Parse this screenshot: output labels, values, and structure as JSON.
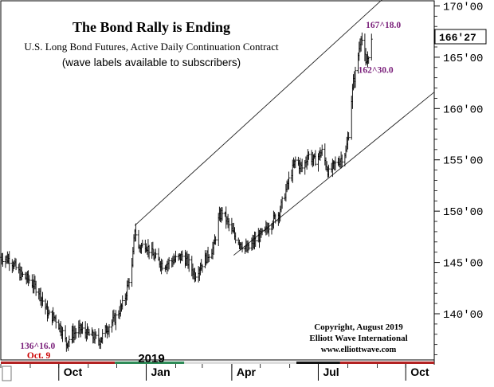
{
  "chart_data": {
    "type": "bar",
    "subtype": "ohlc",
    "title": "The Bond Rally is Ending",
    "subtitle": "U.S. Long Bond Futures, Active Daily Continuation Contract",
    "note": "(wave labels available to subscribers)",
    "ylabel": "",
    "xlabel": "",
    "y_axis_side": "right",
    "ylim": [
      135.5,
      170.5
    ],
    "y_ticks": [
      {
        "value": 170,
        "label": "170'00"
      },
      {
        "value": 165,
        "label": "165'00"
      },
      {
        "value": 160,
        "label": "160'00"
      },
      {
        "value": 155,
        "label": "155'00"
      },
      {
        "value": 150,
        "label": "150'00"
      },
      {
        "value": 145,
        "label": "145'00"
      },
      {
        "value": 140,
        "label": "140'00"
      }
    ],
    "x_ticks": [
      {
        "date": "2018-10-01",
        "label": "Oct"
      },
      {
        "date": "2019-01-01",
        "label": "Jan"
      },
      {
        "date": "2019-04-01",
        "label": "Apr"
      },
      {
        "date": "2019-07-01",
        "label": "Jul"
      },
      {
        "date": "2019-10-01",
        "label": "Oct"
      }
    ],
    "xlim": [
      "2018-08-01",
      "2019-10-31"
    ],
    "year_label": "2019",
    "last_price": {
      "value": 166.84,
      "label": "166'27"
    },
    "annotations": [
      {
        "text": "167^18.0",
        "date": "2019-08-15",
        "value": 167.56,
        "color": "#7a1f7a"
      },
      {
        "text": "162^30.0",
        "date": "2019-08-07",
        "value": 162.94,
        "color": "#7a1f7a"
      },
      {
        "text": "136^16.0",
        "date": "2018-10-09",
        "value": 136.5,
        "color": "#7a1f7a"
      },
      {
        "text": "Oct. 9",
        "date": "2018-10-09",
        "value": 136.5,
        "color": "#cc0000"
      }
    ],
    "copyright": [
      "Copyright, August 2019",
      "Elliott Wave International",
      "www.elliottwave.com"
    ],
    "channel_lines": [
      {
        "name": "upper",
        "from": {
          "date": "2018-12-20",
          "value": 148.6
        },
        "to": {
          "date": "2019-09-06",
          "value": 170.6
        }
      },
      {
        "name": "lower",
        "from": {
          "date": "2019-04-03",
          "value": 145.7
        },
        "to": {
          "date": "2019-10-31",
          "value": 161.6
        }
      }
    ],
    "color_bar": [
      {
        "from": "2018-08-01",
        "to": "2018-11-29",
        "color": "#b22222"
      },
      {
        "from": "2018-11-29",
        "to": "2019-02-10",
        "color": "#2e8b57"
      },
      {
        "from": "2019-02-10",
        "to": "2019-06-08",
        "color": "#dddddd"
      },
      {
        "from": "2019-06-08",
        "to": "2019-07-24",
        "color": "#111111"
      },
      {
        "from": "2019-07-24",
        "to": "2019-10-31",
        "color": "#b22222"
      }
    ],
    "series": [
      {
        "values": [
          {
            "date": "2018-08-01",
            "close": 145.5
          },
          {
            "date": "2018-08-11",
            "close": 145.3
          },
          {
            "date": "2018-08-21",
            "close": 143.9
          },
          {
            "date": "2018-08-31",
            "close": 143.3
          },
          {
            "date": "2018-09-10",
            "close": 142.2
          },
          {
            "date": "2018-09-20",
            "close": 139.9
          },
          {
            "date": "2018-09-27",
            "close": 139.6
          },
          {
            "date": "2018-10-04",
            "close": 138.4
          },
          {
            "date": "2018-10-09",
            "close": 137.1
          },
          {
            "date": "2018-10-15",
            "close": 138.0
          },
          {
            "date": "2018-10-24",
            "close": 138.5
          },
          {
            "date": "2018-11-03",
            "close": 137.9
          },
          {
            "date": "2018-11-13",
            "close": 137.4
          },
          {
            "date": "2018-11-20",
            "close": 138.5
          },
          {
            "date": "2018-11-29",
            "close": 139.5
          },
          {
            "date": "2018-12-09",
            "close": 141.2
          },
          {
            "date": "2018-12-13",
            "close": 143.0
          },
          {
            "date": "2018-12-17",
            "close": 144.5
          },
          {
            "date": "2018-12-20",
            "close": 148.3
          },
          {
            "date": "2018-12-24",
            "close": 146.4
          },
          {
            "date": "2018-12-31",
            "close": 146.8
          },
          {
            "date": "2019-01-09",
            "close": 145.6
          },
          {
            "date": "2019-01-19",
            "close": 144.7
          },
          {
            "date": "2019-01-29",
            "close": 145.2
          },
          {
            "date": "2019-02-08",
            "close": 145.6
          },
          {
            "date": "2019-02-15",
            "close": 144.9
          },
          {
            "date": "2019-02-21",
            "close": 143.8
          },
          {
            "date": "2019-03-03",
            "close": 145.2
          },
          {
            "date": "2019-03-13",
            "close": 146.5
          },
          {
            "date": "2019-03-18",
            "close": 149.1
          },
          {
            "date": "2019-03-22",
            "close": 150.0
          },
          {
            "date": "2019-03-28",
            "close": 148.8
          },
          {
            "date": "2019-04-04",
            "close": 147.6
          },
          {
            "date": "2019-04-11",
            "close": 146.8
          },
          {
            "date": "2019-04-17",
            "close": 146.2
          },
          {
            "date": "2019-04-26",
            "close": 147.2
          },
          {
            "date": "2019-05-06",
            "close": 148.0
          },
          {
            "date": "2019-05-13",
            "close": 149.0
          },
          {
            "date": "2019-05-20",
            "close": 149.7
          },
          {
            "date": "2019-05-25",
            "close": 151.1
          },
          {
            "date": "2019-06-01",
            "close": 153.3
          },
          {
            "date": "2019-06-07",
            "close": 154.9
          },
          {
            "date": "2019-06-15",
            "close": 154.1
          },
          {
            "date": "2019-06-20",
            "close": 155.5
          },
          {
            "date": "2019-06-27",
            "close": 154.9
          },
          {
            "date": "2019-07-05",
            "close": 155.8
          },
          {
            "date": "2019-07-12",
            "close": 153.7
          },
          {
            "date": "2019-07-18",
            "close": 154.5
          },
          {
            "date": "2019-07-25",
            "close": 155.1
          },
          {
            "date": "2019-07-30",
            "close": 155.8
          },
          {
            "date": "2019-08-02",
            "close": 157.6
          },
          {
            "date": "2019-08-05",
            "close": 160.9
          },
          {
            "date": "2019-08-07",
            "close": 162.6
          },
          {
            "date": "2019-08-10",
            "close": 163.8
          },
          {
            "date": "2019-08-13",
            "close": 165.9
          },
          {
            "date": "2019-08-15",
            "close": 167.2
          },
          {
            "date": "2019-08-18",
            "close": 165.6
          },
          {
            "date": "2019-08-20",
            "close": 164.2
          },
          {
            "date": "2019-08-22",
            "close": 164.9
          },
          {
            "date": "2019-08-25",
            "close": 166.2
          },
          {
            "date": "2019-08-27",
            "close": 166.84
          }
        ]
      }
    ]
  }
}
